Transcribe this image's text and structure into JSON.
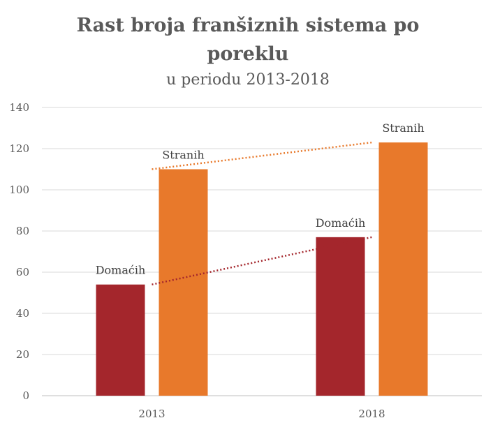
{
  "chart_data": {
    "type": "bar",
    "title": "Rast broja franšiznih sistema po poreklu",
    "title_lines": [
      "Rast broja franšiznih sistema po",
      "poreklu"
    ],
    "subtitle": "u periodu 2013-2018",
    "categories": [
      "2013",
      "2018"
    ],
    "series": [
      {
        "name": "Domaćih",
        "values": [
          54,
          77
        ],
        "color": "#A4262C",
        "trendline": "linear-dotted"
      },
      {
        "name": "Stranih",
        "values": [
          110,
          123
        ],
        "color": "#E8792B",
        "trendline": "linear-dotted"
      }
    ],
    "ylim": [
      0,
      140
    ],
    "yticks": [
      0,
      20,
      40,
      60,
      80,
      100,
      120,
      140
    ],
    "grid": true,
    "legend": "none",
    "xlabel": "",
    "ylabel": ""
  }
}
